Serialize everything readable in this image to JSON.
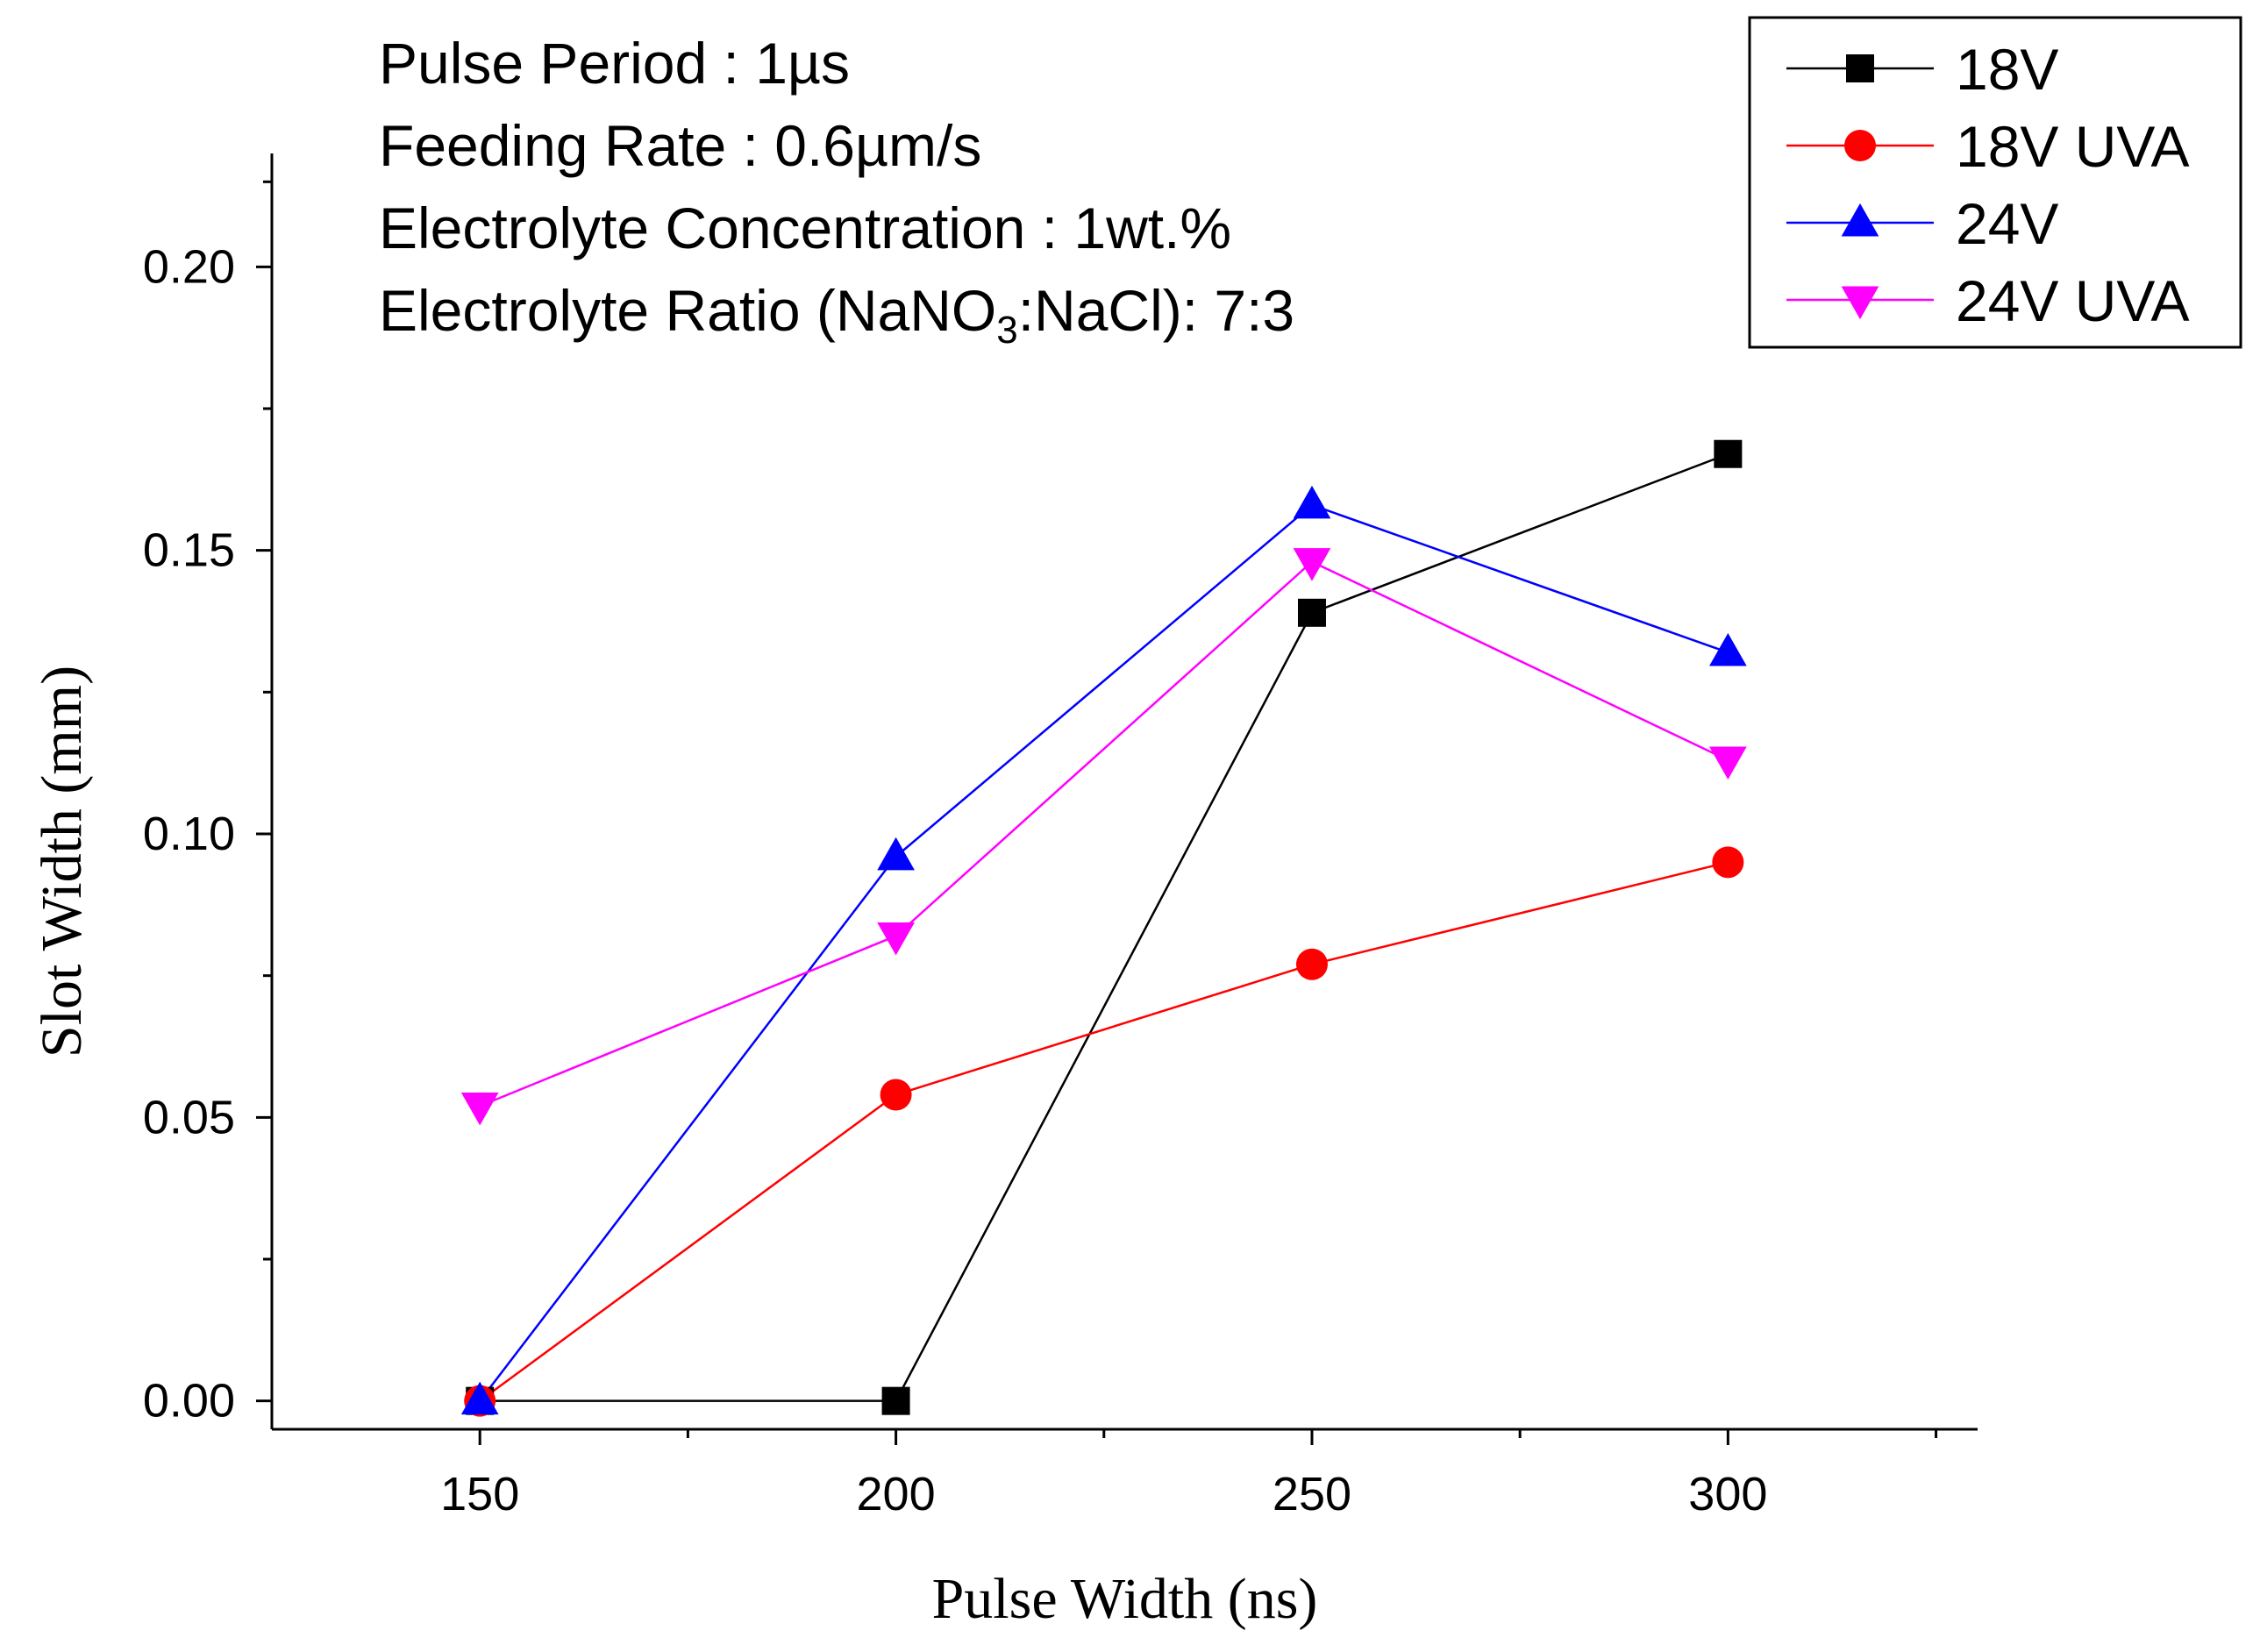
{
  "chart_data": {
    "type": "line",
    "xlabel": "Pulse Width (ns)",
    "ylabel": "Slot Width (mm)",
    "xlim": [
      125,
      330
    ],
    "ylim": [
      -0.005,
      0.22
    ],
    "x_ticks": [
      150,
      200,
      250,
      300
    ],
    "x_tick_labels": [
      "150",
      "200",
      "250",
      "300"
    ],
    "y_ticks": [
      0.0,
      0.05,
      0.1,
      0.15,
      0.2
    ],
    "y_tick_labels": [
      "0.00",
      "0.05",
      "0.10",
      "0.15",
      "0.20"
    ],
    "grid": false,
    "legend_position": "top-right",
    "annotations": [
      {
        "id": "pulse-period",
        "text": "Pulse Period : 1µs"
      },
      {
        "id": "feeding-rate",
        "text": "Feeding Rate : 0.6µm/s"
      },
      {
        "id": "electrolyte-concentration",
        "text": "Electrolyte Concentration : 1wt.%"
      },
      {
        "id": "electrolyte-ratio",
        "prefix": "Electrolyte Ratio (NaNO",
        "sub": "3",
        "suffix": ":NaCl): 7:3"
      }
    ],
    "x": [
      150,
      200,
      250,
      300
    ],
    "series": [
      {
        "name": "18V",
        "color": "#000000",
        "marker": "square",
        "values": [
          0.0,
          0.0,
          0.139,
          0.167
        ]
      },
      {
        "name": "18V UVA",
        "color": "#ff0000",
        "marker": "circle",
        "values": [
          0.0,
          0.054,
          0.077,
          0.095
        ]
      },
      {
        "name": "24V",
        "color": "#0000ff",
        "marker": "triangle-up",
        "values": [
          0.0,
          0.096,
          0.158,
          0.132
        ]
      },
      {
        "name": "24V UVA",
        "color": "#ff00ff",
        "marker": "triangle-down",
        "values": [
          0.052,
          0.082,
          0.148,
          0.113
        ]
      }
    ]
  }
}
